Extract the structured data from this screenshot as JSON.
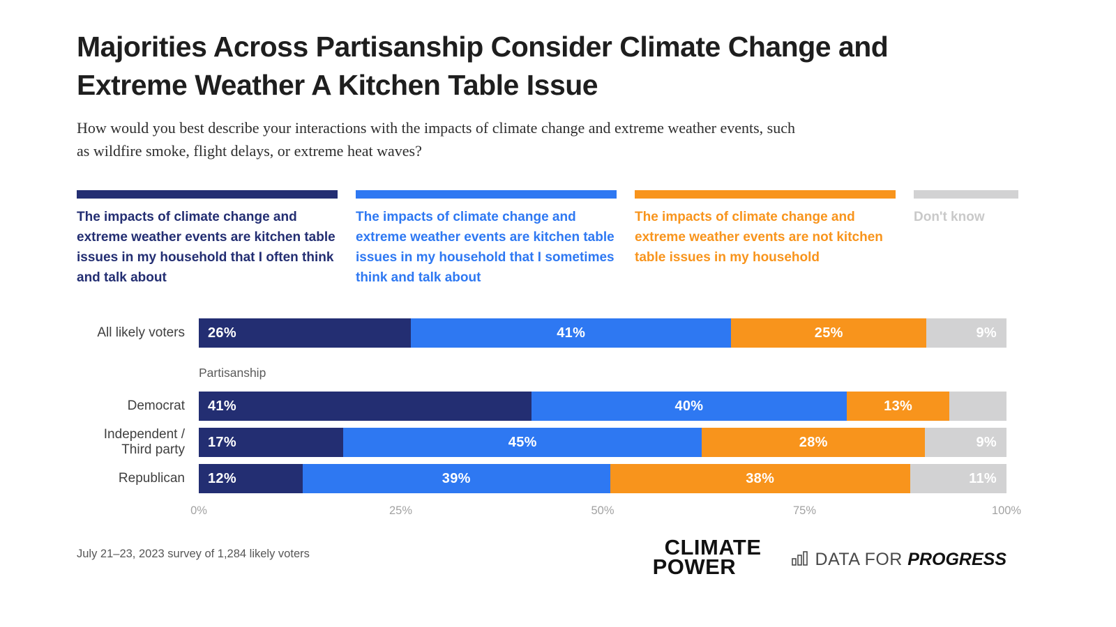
{
  "title": {
    "line1": "Majorities Across Partisanship Consider Climate Change and",
    "line2": "Extreme Weather A Kitchen Table Issue"
  },
  "subtitle": {
    "line1": "How would you best describe your interactions with the impacts of climate change and extreme weather events, such",
    "line2": "as wildfire smoke, flight delays, or extreme heat waves?"
  },
  "legend": [
    {
      "label": "The impacts of climate change and extreme weather events are kitchen table issues in my household that I often think and talk about",
      "color": "#232e72",
      "text_color": "#232e72"
    },
    {
      "label": "The impacts of climate change and extreme weather events are kitchen table issues in my household that I sometimes think and talk about",
      "color": "#2e78f2",
      "text_color": "#2e78f2"
    },
    {
      "label": "The impacts of climate change and extreme weather events are not kitchen table issues in my household",
      "color": "#f8941c",
      "text_color": "#f8941c"
    },
    {
      "label": "Don't know",
      "color": "#d2d2d3",
      "text_color": "#c9c9c9"
    }
  ],
  "chart_data": {
    "type": "bar",
    "orientation": "horizontal",
    "stacked": true,
    "categories": [
      "All likely voters",
      "Democrat",
      "Independent / Third party",
      "Republican"
    ],
    "group_label": "Partisanship",
    "group_label_before_index": 1,
    "series": [
      {
        "name": "Kitchen table issue — often think and talk about",
        "color": "#232e72",
        "values": [
          26,
          41,
          17,
          12
        ]
      },
      {
        "name": "Kitchen table issue — sometimes think and talk about",
        "color": "#2e78f2",
        "values": [
          41,
          40,
          45,
          39
        ]
      },
      {
        "name": "Not kitchen table issues in my household",
        "color": "#f8941c",
        "values": [
          25,
          13,
          28,
          38
        ]
      },
      {
        "name": "Don't know",
        "color": "#d2d2d3",
        "values": [
          9,
          6,
          9,
          11
        ]
      }
    ],
    "value_labels": [
      [
        "26%",
        "41%",
        "25%",
        "9%"
      ],
      [
        "41%",
        "40%",
        "13%",
        ""
      ],
      [
        "17%",
        "45%",
        "28%",
        "9%"
      ],
      [
        "12%",
        "39%",
        "38%",
        "11%"
      ]
    ],
    "x_ticks": [
      "0%",
      "25%",
      "50%",
      "75%",
      "100%"
    ],
    "xlim": [
      0,
      100
    ]
  },
  "footer": {
    "note": "July 21–23, 2023 survey of 1,284 likely voters",
    "climate_power": {
      "line1": "CLIMATE",
      "line2": "POWER"
    },
    "data_for_progress": {
      "prefix": "DATA FOR ",
      "name": "PROGRESS"
    }
  }
}
